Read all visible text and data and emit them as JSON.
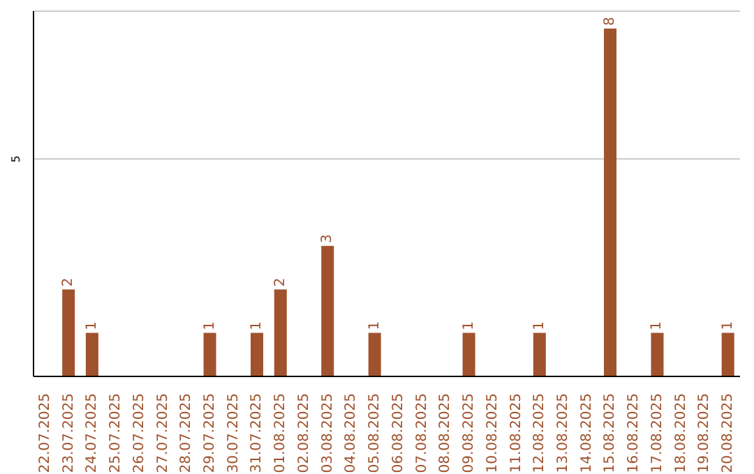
{
  "chart_data": {
    "type": "bar",
    "categories": [
      "22.07.2025",
      "23.07.2025",
      "24.07.2025",
      "25.07.2025",
      "26.07.2025",
      "27.07.2025",
      "28.07.2025",
      "29.07.2025",
      "30.07.2025",
      "31.07.2025",
      "01.08.2025",
      "02.08.2025",
      "03.08.2025",
      "04.08.2025",
      "05.08.2025",
      "06.08.2025",
      "07.08.2025",
      "08.08.2025",
      "09.08.2025",
      "10.08.2025",
      "11.08.2025",
      "12.08.2025",
      "13.08.2025",
      "14.08.2025",
      "15.08.2025",
      "16.08.2025",
      "17.08.2025",
      "18.08.2025",
      "19.08.2025",
      "20.08.2025"
    ],
    "values": [
      0,
      2,
      1,
      0,
      0,
      0,
      0,
      1,
      0,
      1,
      2,
      0,
      3,
      0,
      1,
      0,
      0,
      0,
      1,
      0,
      0,
      1,
      0,
      0,
      8,
      0,
      1,
      0,
      0,
      1
    ],
    "value_labels": [
      null,
      "2",
      "1",
      null,
      null,
      null,
      null,
      "1",
      null,
      "1",
      "2",
      null,
      "3",
      null,
      "1",
      null,
      null,
      null,
      "1",
      null,
      null,
      "1",
      null,
      null,
      "8",
      null,
      "1",
      null,
      null,
      "1"
    ],
    "color": "#a0522d",
    "ylim": [
      0,
      8.4
    ],
    "yticks": [
      5
    ],
    "grid": "y"
  }
}
